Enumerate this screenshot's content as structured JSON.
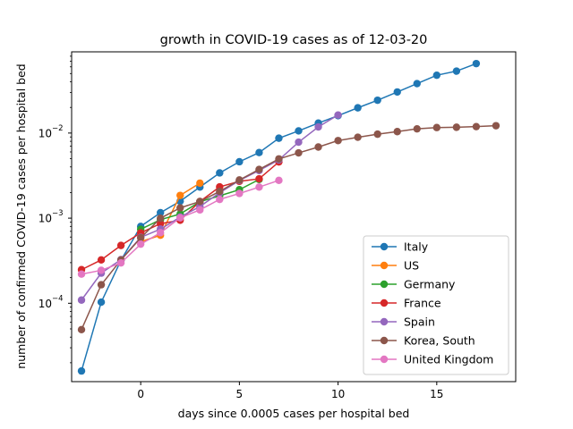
{
  "chart_data": {
    "type": "line",
    "title": "growth in COVID-19 cases as of 12-03-20",
    "xlabel": "days since 0.0005 cases per hospital bed",
    "ylabel": "number of confirmed COVID-19 cases per hospital bed",
    "xlim": [
      -3.5,
      19
    ],
    "ylim": [
      1.2e-05,
      0.09
    ],
    "yscale": "log",
    "x_ticks": [
      0,
      5,
      10,
      15
    ],
    "x_tick_labels": [
      "0",
      "5",
      "10",
      "15"
    ],
    "y_ticks": [
      0.0001,
      0.001,
      0.01
    ],
    "y_tick_labels": [
      "10",
      "10",
      "10"
    ],
    "y_tick_exponents": [
      "−4",
      "−3",
      "−2"
    ],
    "legend_position": "lower-right",
    "grid": false,
    "series": [
      {
        "name": "Italy",
        "color": "#1f77b4",
        "x": [
          -3,
          -2,
          -1,
          0,
          1,
          2,
          3,
          4,
          5,
          6,
          7,
          8,
          9,
          10,
          11,
          12,
          13,
          14,
          15,
          16,
          17
        ],
        "y": [
          1.6e-05,
          0.000103,
          0.00032,
          0.0008,
          0.00116,
          0.00158,
          0.00232,
          0.0034,
          0.0046,
          0.0059,
          0.0087,
          0.0106,
          0.0131,
          0.016,
          0.0198,
          0.0243,
          0.0304,
          0.0381,
          0.0478,
          0.0534,
          0.0655
        ]
      },
      {
        "name": "US",
        "color": "#ff7f0e",
        "x": [
          0,
          1,
          2,
          3
        ],
        "y": [
          0.00053,
          0.00063,
          0.00185,
          0.00258
        ]
      },
      {
        "name": "Germany",
        "color": "#2ca02c",
        "x": [
          0,
          1,
          2,
          3,
          4,
          5,
          6
        ],
        "y": [
          0.00074,
          0.00096,
          0.00112,
          0.00156,
          0.00183,
          0.00216,
          0.00285
        ]
      },
      {
        "name": "France",
        "color": "#d62728",
        "x": [
          -3,
          -2,
          -1,
          0,
          1,
          2,
          3,
          4,
          5,
          6,
          7
        ],
        "y": [
          0.000248,
          0.000323,
          0.000478,
          0.000672,
          0.000862,
          0.000945,
          0.00157,
          0.00233,
          0.00271,
          0.0029,
          0.00458
        ]
      },
      {
        "name": "Spain",
        "color": "#9467bd",
        "x": [
          -3,
          -2,
          -1,
          0,
          1,
          2,
          3,
          4,
          5,
          6,
          7,
          8,
          9,
          10
        ],
        "y": [
          0.000109,
          0.000226,
          0.000326,
          0.000595,
          0.000743,
          0.00103,
          0.00137,
          0.00199,
          0.00277,
          0.00363,
          0.00484,
          0.00782,
          0.0118,
          0.0163
        ]
      },
      {
        "name": "Korea, South",
        "color": "#8c564b",
        "x": [
          -3,
          -2,
          -1,
          0,
          1,
          2,
          3,
          4,
          5,
          6,
          7,
          8,
          9,
          10,
          11,
          12,
          13,
          14,
          15,
          16,
          17,
          18
        ],
        "y": [
          4.9e-05,
          0.000165,
          0.000323,
          0.000587,
          0.000998,
          0.00132,
          0.00157,
          0.00206,
          0.00281,
          0.00374,
          0.00497,
          0.00585,
          0.00685,
          0.00816,
          0.00892,
          0.0097,
          0.0104,
          0.0112,
          0.0116,
          0.0117,
          0.0119,
          0.0122
        ]
      },
      {
        "name": "United Kingdom",
        "color": "#e377c2",
        "x": [
          -3,
          -2,
          -1,
          0,
          1,
          2,
          3,
          4,
          5,
          6,
          7
        ],
        "y": [
          0.00022,
          0.000244,
          0.000298,
          0.000495,
          0.000675,
          0.00101,
          0.00125,
          0.00166,
          0.00195,
          0.00232,
          0.00278
        ]
      }
    ]
  }
}
